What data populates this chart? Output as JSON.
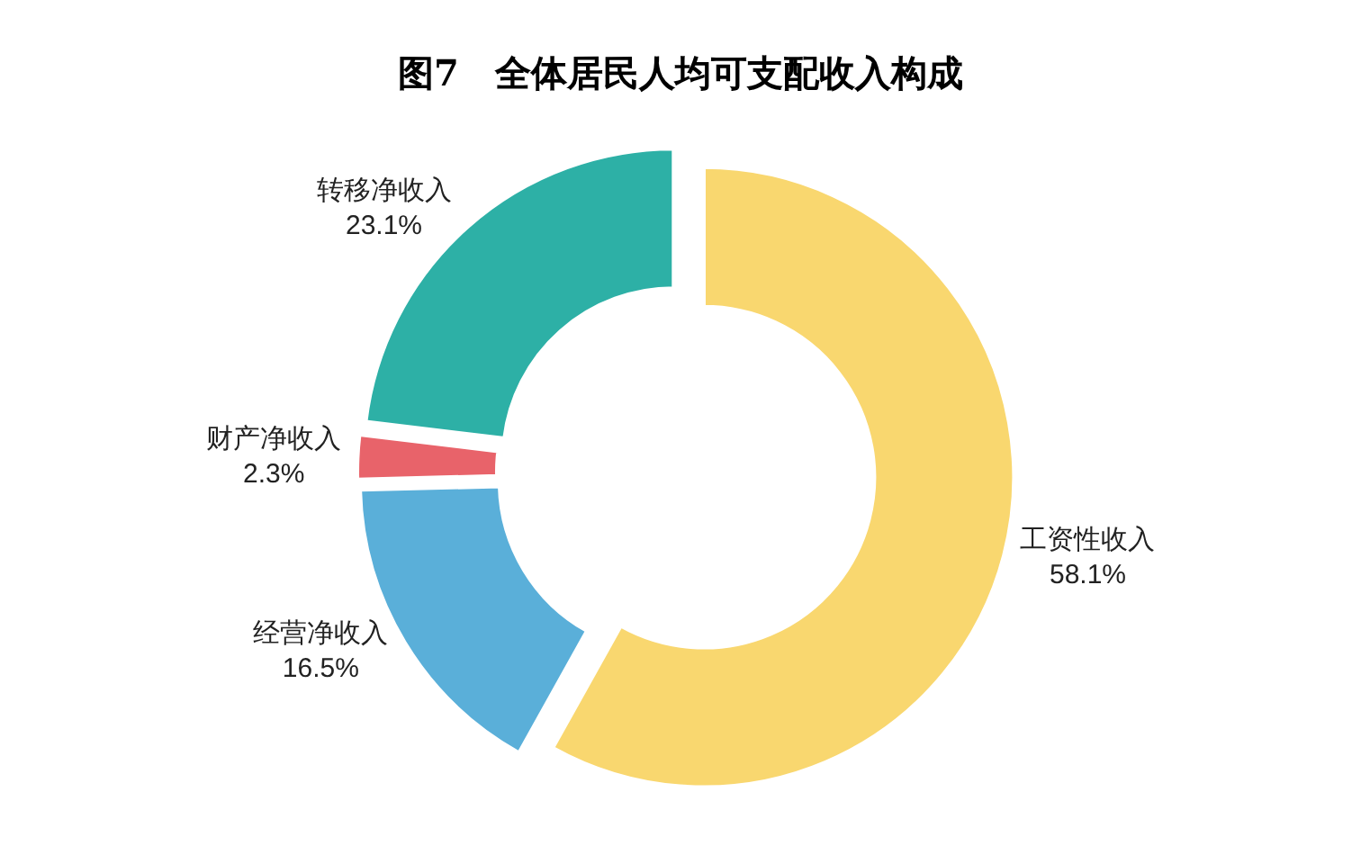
{
  "chart_data": {
    "type": "donut",
    "title": "图7　全体居民人均可支配收入构成",
    "categories": [
      "工资性收入",
      "经营净收入",
      "财产净收入",
      "转移净收入"
    ],
    "values": [
      58.1,
      16.5,
      2.3,
      23.1
    ],
    "value_labels": [
      "58.1%",
      "16.5%",
      "2.3%",
      "23.1%"
    ],
    "colors": [
      "#f9d76f",
      "#5aafd9",
      "#e8636a",
      "#2db0a6"
    ],
    "legend": false
  }
}
